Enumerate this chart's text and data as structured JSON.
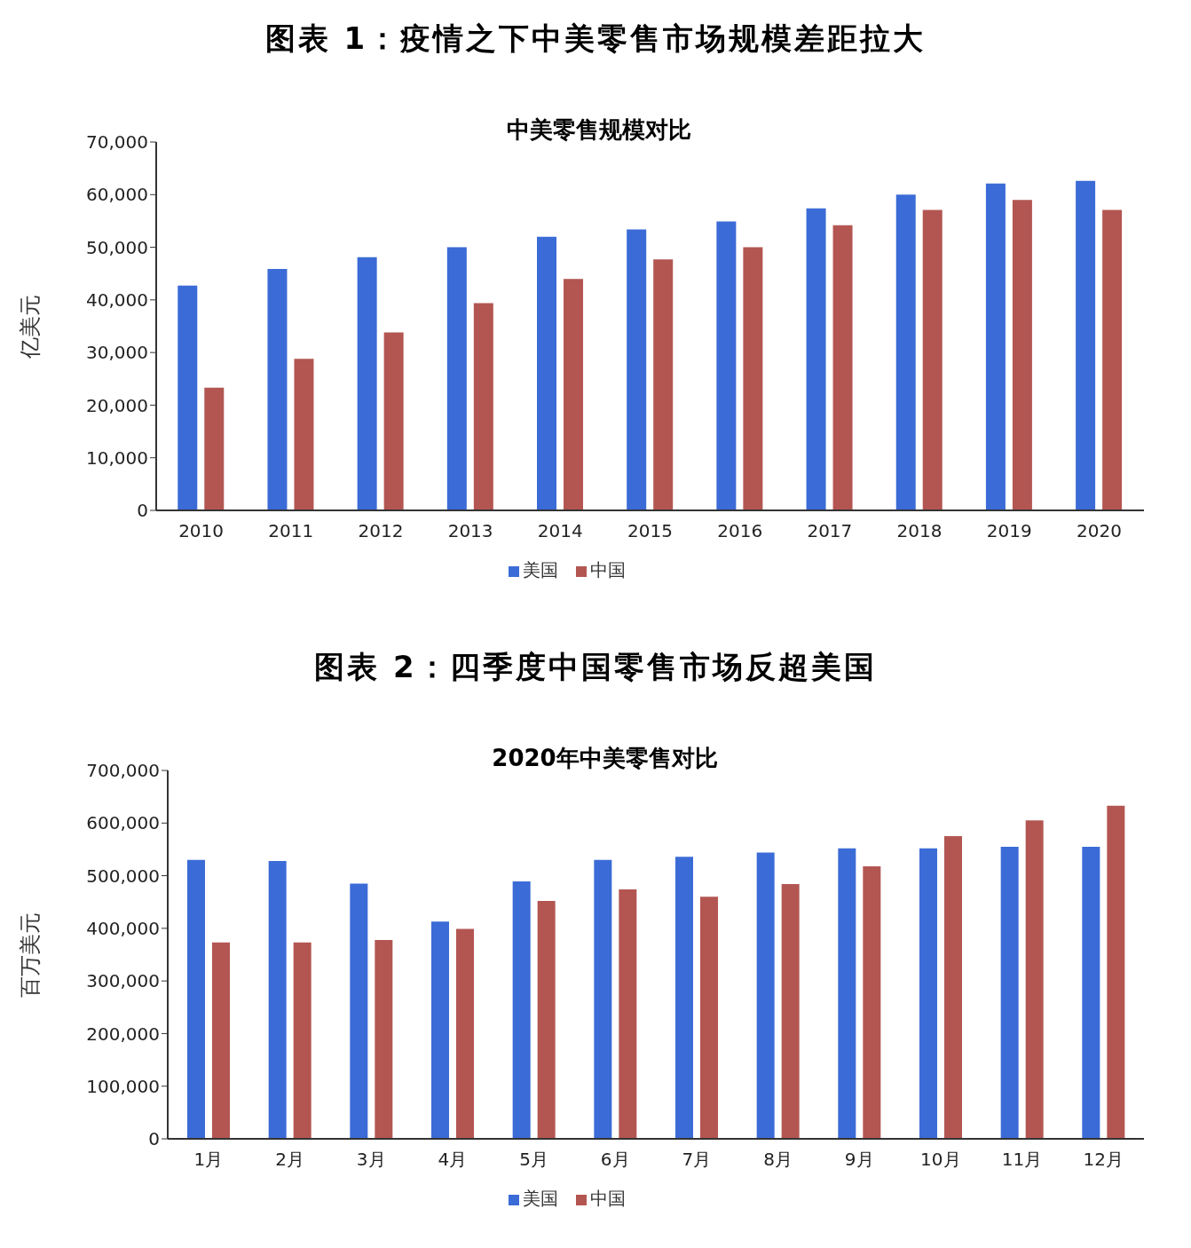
{
  "chart_data": [
    {
      "type": "bar",
      "title": "图表 1：疫情之下中美零售市场规模差距拉大",
      "subtitle": "中美零售规模对比",
      "ylabel": "亿美元",
      "categories": [
        "2010",
        "2011",
        "2012",
        "2013",
        "2014",
        "2015",
        "2016",
        "2017",
        "2018",
        "2019",
        "2020"
      ],
      "series": [
        {
          "name": "美国",
          "color": "#3b6bd6",
          "values": [
            42700,
            45900,
            48100,
            50000,
            52000,
            53400,
            54900,
            57400,
            60000,
            62100,
            62600
          ]
        },
        {
          "name": "中国",
          "color": "#b35652",
          "values": [
            23300,
            28800,
            33800,
            39400,
            44000,
            47700,
            50000,
            54200,
            57100,
            59000,
            57100
          ]
        }
      ],
      "ylim": [
        0,
        70000
      ],
      "yticks": [
        0,
        {
          "value": 10000,
          "label": "10,000"
        },
        {
          "value": 20000,
          "label": "20,000"
        },
        {
          "value": 30000,
          "label": "30,000"
        },
        {
          "value": 40000,
          "label": "40,000"
        },
        {
          "value": 50000,
          "label": "50,000"
        },
        {
          "value": 60000,
          "label": "60,000"
        },
        {
          "value": 70000,
          "label": "70,000"
        }
      ],
      "legend": "bottom"
    },
    {
      "type": "bar",
      "title": "图表 2：四季度中国零售市场反超美国",
      "subtitle": "2020年中美零售对比",
      "ylabel": "百万美元",
      "categories": [
        "1月",
        "2月",
        "3月",
        "4月",
        "5月",
        "6月",
        "7月",
        "8月",
        "9月",
        "10月",
        "11月",
        "12月"
      ],
      "series": [
        {
          "name": "美国",
          "color": "#3b6bd6",
          "values": [
            530000,
            528000,
            485000,
            413000,
            489000,
            530000,
            536000,
            544000,
            552000,
            552000,
            555000,
            555000
          ]
        },
        {
          "name": "中国",
          "color": "#b35652",
          "values": [
            373000,
            373000,
            378000,
            399000,
            452000,
            474000,
            460000,
            484000,
            518000,
            575000,
            605000,
            633000
          ]
        }
      ],
      "ylim": [
        0,
        700000
      ],
      "yticks": [
        0,
        {
          "value": 100000,
          "label": "100,000"
        },
        {
          "value": 200000,
          "label": "200,000"
        },
        {
          "value": 300000,
          "label": "300,000"
        },
        {
          "value": 400000,
          "label": "400,000"
        },
        {
          "value": 500000,
          "label": "500,000"
        },
        {
          "value": 600000,
          "label": "600,000"
        },
        {
          "value": 700000,
          "label": "700,000"
        }
      ],
      "legend": "bottom"
    }
  ]
}
